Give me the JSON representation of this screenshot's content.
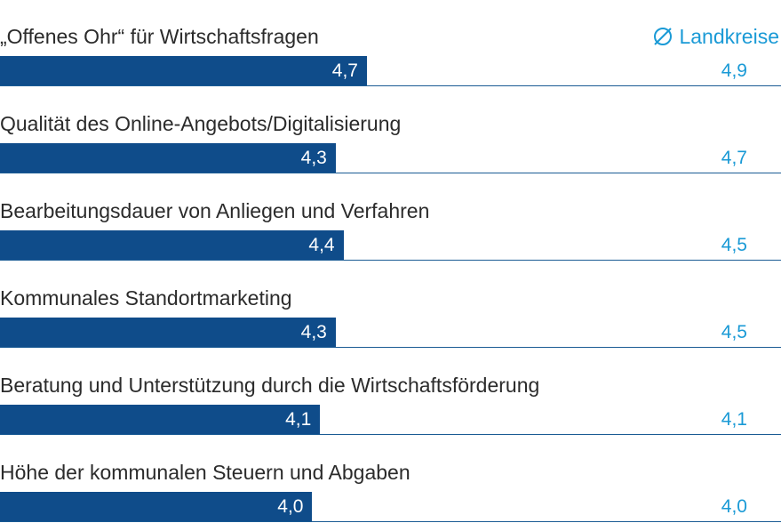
{
  "chart_data": {
    "type": "bar",
    "orientation": "horizontal",
    "legend": {
      "label": "Landkreise",
      "symbol": "Ø",
      "placement": "top-right",
      "color": "#1a9ad6"
    },
    "categories": [
      "„Offenes Ohr“ für Wirtschaftsfragen",
      "Qualität des Online-Angebots/Digitalisierung",
      "Bearbeitungsdauer von Anliegen und Verfahren",
      "Kommunales Standortmarketing",
      "Beratung und Unterstützung durch die Wirtschaftsförderung",
      "Höhe der kommunalen Steuern und Abgaben"
    ],
    "series": [
      {
        "values": [
          4.7,
          4.3,
          4.4,
          4.3,
          4.1,
          4.0
        ],
        "labels": [
          "4,7",
          "4,3",
          "4,4",
          "4,3",
          "4,1",
          "4,0"
        ],
        "color": "#0f4c8a"
      },
      {
        "name": "Landkreise",
        "values": [
          4.9,
          4.7,
          4.5,
          4.5,
          4.1,
          4.0
        ],
        "labels": [
          "4,9",
          "4,7",
          "4,5",
          "4,5",
          "4,1",
          "4,0"
        ],
        "color": "#1a9ad6"
      }
    ],
    "xlim": [
      0,
      10
    ]
  }
}
